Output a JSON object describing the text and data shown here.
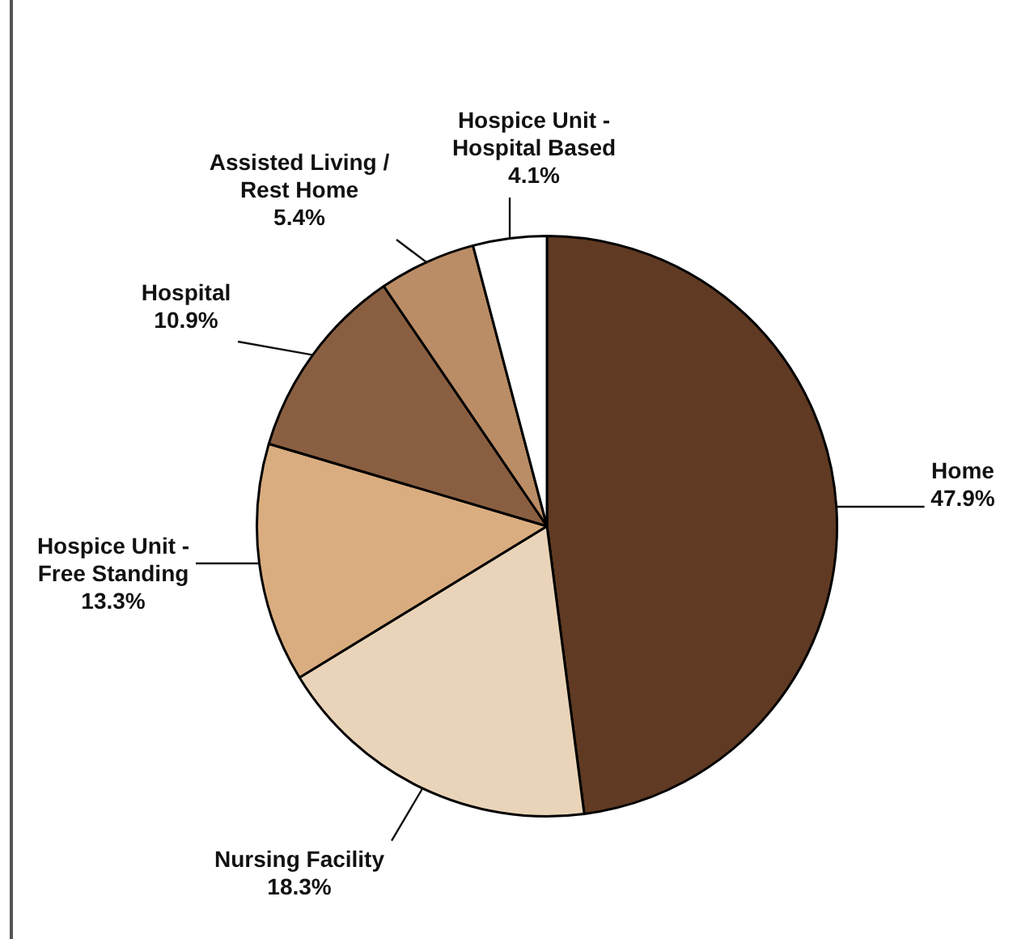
{
  "chart_data": {
    "type": "pie",
    "categories": [
      "Home",
      "Nursing Facility",
      "Hospice Unit - Free Standing",
      "Hospital",
      "Assisted Living / Rest Home",
      "Hospice Unit - Hospital Based"
    ],
    "values": [
      47.9,
      18.3,
      13.3,
      10.9,
      5.4,
      4.1
    ],
    "colors": [
      "#603a23",
      "#ead4b9",
      "#d9ad80",
      "#8a5f41",
      "#bb8d66",
      "#ffffff"
    ],
    "value_labels": [
      "47.9%",
      "18.3%",
      "13.3%",
      "10.9%",
      "5.4%",
      "4.1%"
    ],
    "legend": false
  }
}
